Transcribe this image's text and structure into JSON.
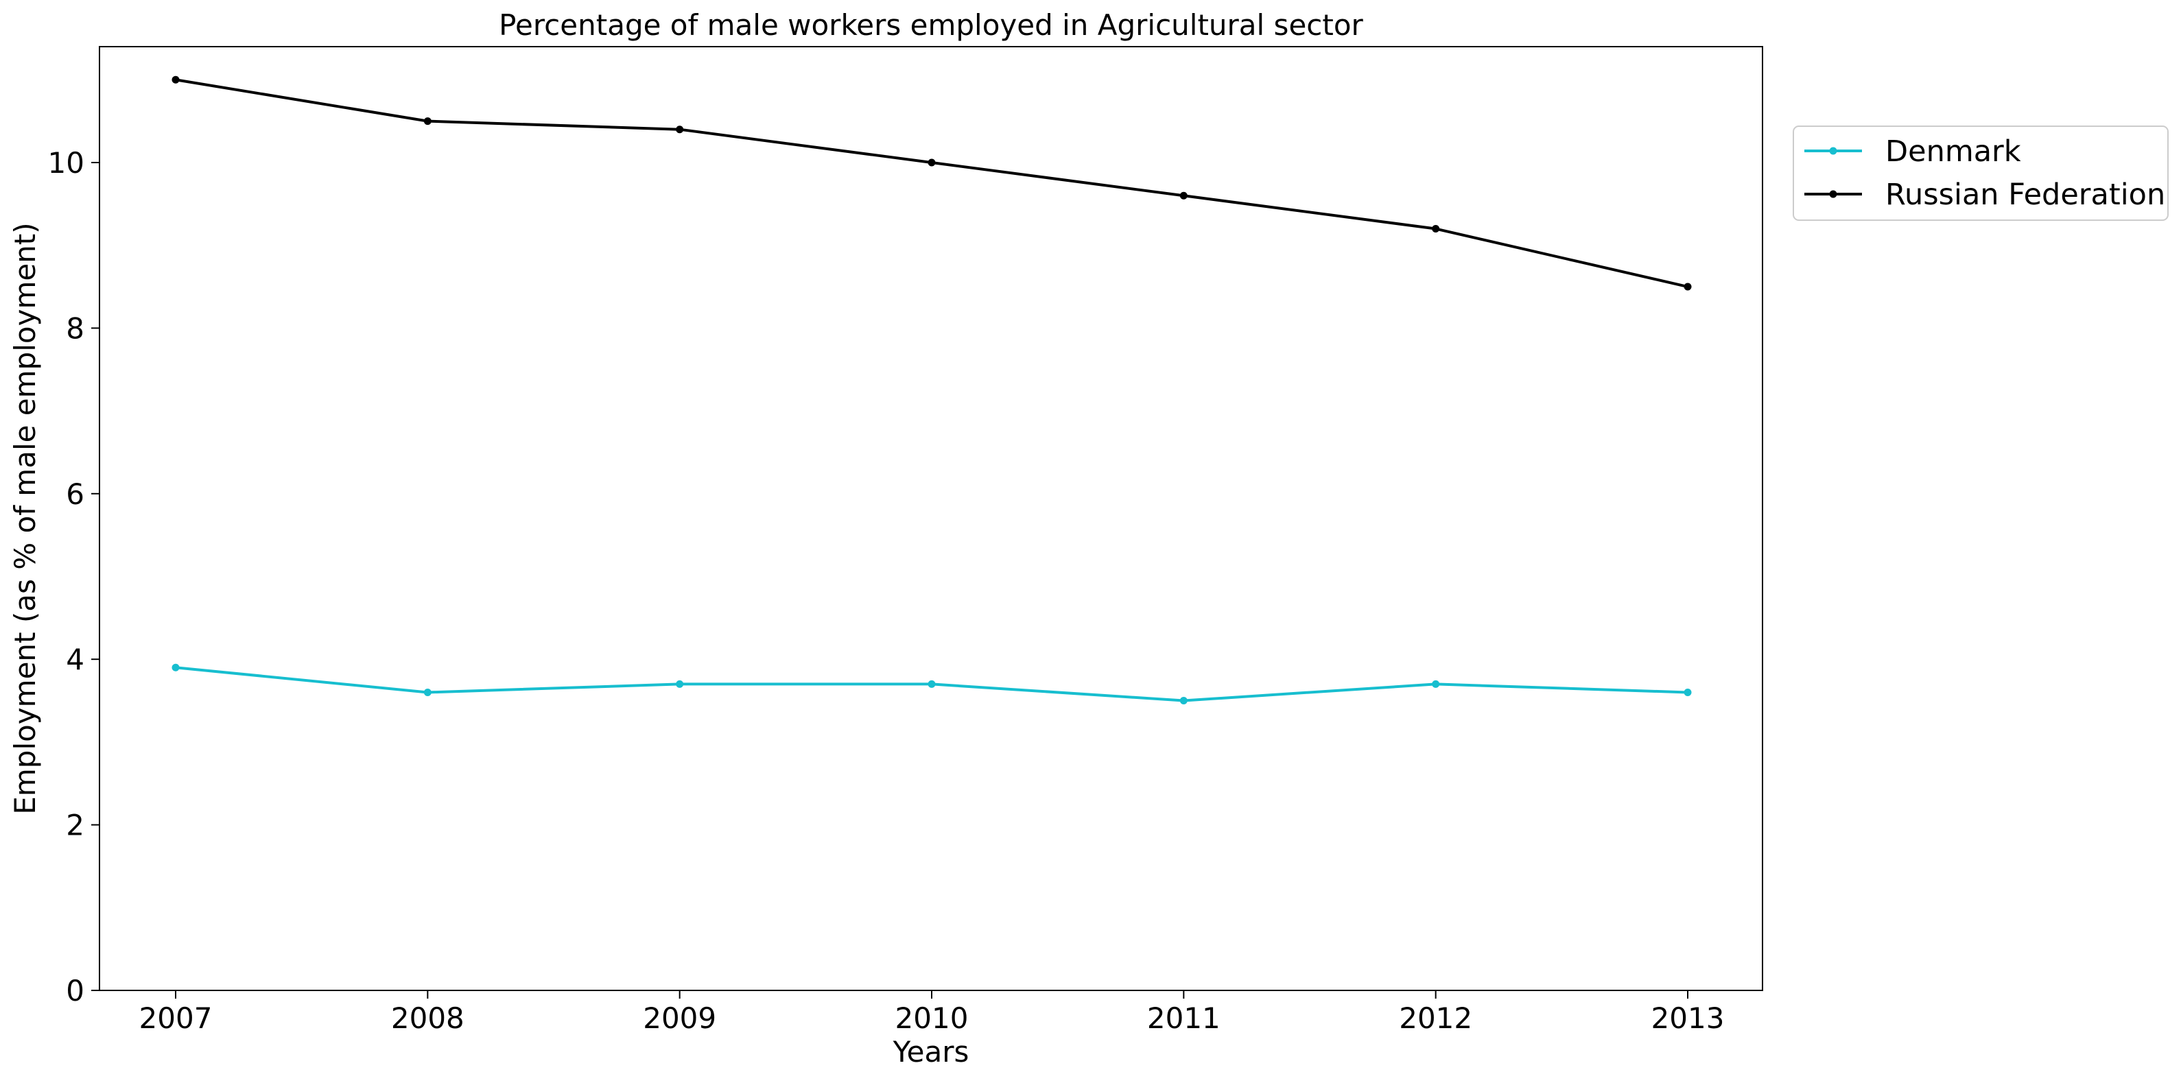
{
  "chart_data": {
    "type": "line",
    "title": "Percentage of male workers employed in Agricultural sector",
    "xlabel": "Years",
    "ylabel": "Employment (as % of male employment)",
    "x": [
      "2007",
      "2008",
      "2009",
      "2010",
      "2011",
      "2012",
      "2013"
    ],
    "y_ticks": [
      "0",
      "2",
      "4",
      "6",
      "8",
      "10"
    ],
    "ylim": [
      0,
      11.4
    ],
    "grid": false,
    "legend_position": "upper-right outside",
    "series": [
      {
        "name": "Denmark",
        "color": "#17becf",
        "values": [
          3.9,
          3.6,
          3.7,
          3.7,
          3.5,
          3.7,
          3.6
        ]
      },
      {
        "name": "Russian Federation",
        "color": "#000000",
        "values": [
          11.0,
          10.5,
          10.4,
          10.0,
          9.6,
          9.2,
          8.5
        ]
      }
    ]
  }
}
